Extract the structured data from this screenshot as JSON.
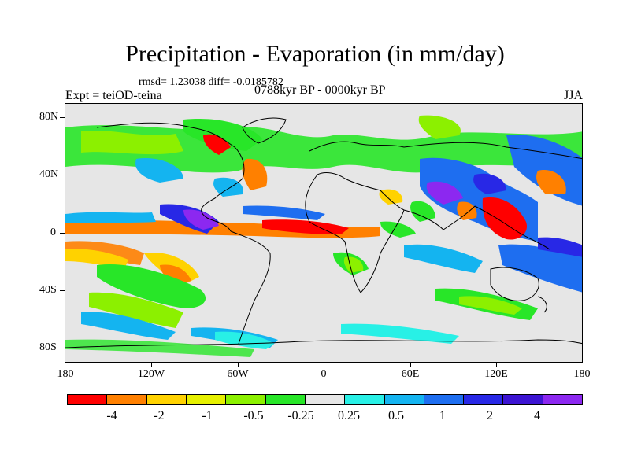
{
  "title": "Precipitation - Evaporation (in mm/day)",
  "stats": "rmsd= 1.23038 diff= -0.0185782",
  "experiment": "Expt = teiOD-teina",
  "period": "0788kyr BP - 0000kyr BP",
  "season": "JJA",
  "lat_labels": [
    "80N",
    "40N",
    "0",
    "40S",
    "80S"
  ],
  "lon_labels": [
    "180",
    "120W",
    "60W",
    "0",
    "60E",
    "120E",
    "180"
  ],
  "colorbar": {
    "colors": [
      "#ff0000",
      "#ff8000",
      "#ffd200",
      "#e6f000",
      "#8cf000",
      "#28e628",
      "#e6e6e6",
      "#28f0e6",
      "#14b4f0",
      "#1e6ef0",
      "#2828e6",
      "#3c14d2",
      "#8c28f0"
    ],
    "labels": [
      "-4",
      "-2",
      "-1",
      "-0.5",
      "-0.25",
      "0.25",
      "0.5",
      "1",
      "2",
      "4"
    ]
  },
  "palette": {
    "red": "#ff0000",
    "orange": "#ff8000",
    "yellow": "#ffd200",
    "lime": "#8cf000",
    "green": "#28e628",
    "neutral": "#e6e6e6",
    "cyan": "#28f0e6",
    "sky": "#14b4f0",
    "blue": "#1e6ef0",
    "navy": "#2828e6",
    "purple": "#8c28f0"
  }
}
